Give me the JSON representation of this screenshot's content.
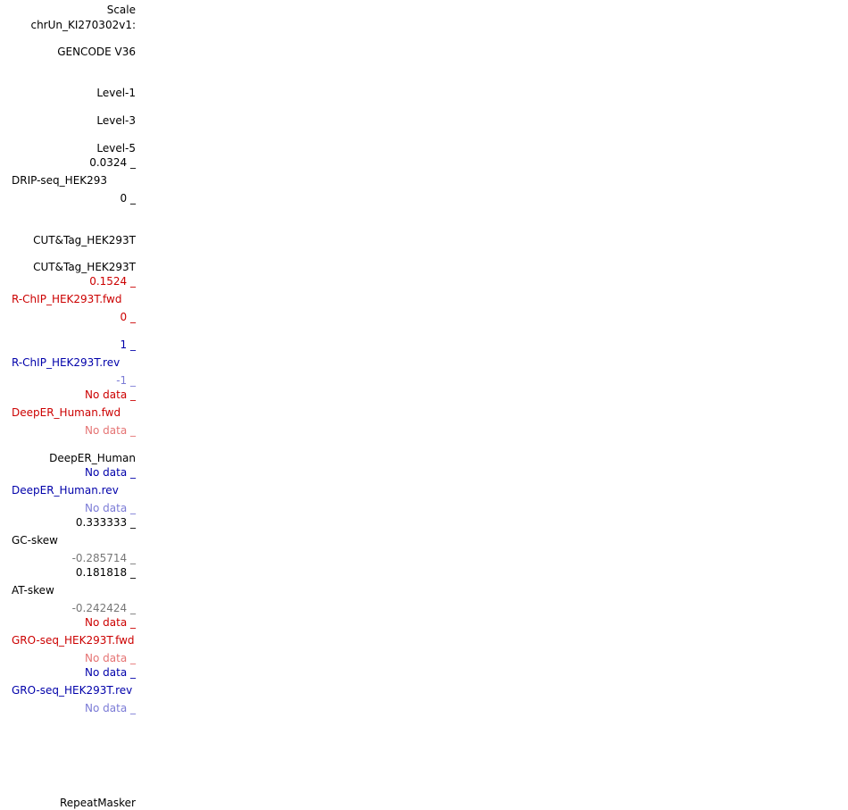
{
  "labels": {
    "scale": "Scale",
    "chrom": "chrUn_KI270302v1:",
    "gencode": "GENCODE V36",
    "level1": "Level-1",
    "level3": "Level-3",
    "level5": "Level-5",
    "drip_max": "0.0324 _",
    "drip_name": "DRIP-seq_HEK293",
    "drip_min": "0 _",
    "cuttag1": "CUT&Tag_HEK293T",
    "cuttag2": "CUT&Tag_HEK293T",
    "rchip_fwd_max": "0.1524 _",
    "rchip_fwd_name": "R-ChIP_HEK293T.fwd",
    "rchip_fwd_min": "0 _",
    "rchip_rev_max": "1 _",
    "rchip_rev_name": "R-ChIP_HEK293T.rev",
    "rchip_rev_min": "-1 _",
    "deeper_fwd_max": "No data _",
    "deeper_fwd_name": "DeepER_Human.fwd",
    "deeper_fwd_min": "No data _",
    "deeper_human": "DeepER_Human",
    "deeper_rev_max": "No data _",
    "deeper_rev_name": "DeepER_Human.rev",
    "deeper_rev_min": "No data _",
    "gc_max": "0.333333 _",
    "gc_name": "GC-skew",
    "gc_min": "-0.285714 _",
    "at_max": "0.181818 _",
    "at_name": "AT-skew",
    "at_min": "-0.242424 _",
    "gro_fwd_max": "No data _",
    "gro_fwd_name": "GRO-seq_HEK293T.fwd",
    "gro_fwd_min": "No data _",
    "gro_rev_max": "No data _",
    "gro_rev_name": "GRO-seq_HEK293T.rev",
    "gro_rev_min": "No data _",
    "repeatmasker": "RepeatMasker"
  },
  "colors": {
    "red": "#cc0000",
    "red_light": "#e57373",
    "blue": "#0000aa",
    "blue_light": "#7b7bd6",
    "gray": "#777777"
  }
}
